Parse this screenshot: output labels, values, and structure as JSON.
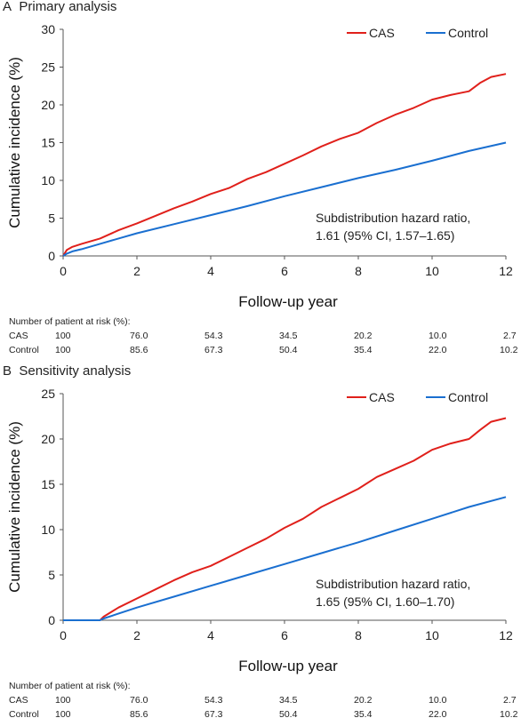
{
  "chart_data": [
    {
      "type": "line",
      "panel_label": "A",
      "title": "Primary analysis",
      "xlabel": "Follow-up year",
      "ylabel": "Cumulative incidence (%)",
      "xlim": [
        0,
        12
      ],
      "ylim": [
        0,
        30
      ],
      "xticks": [
        0,
        2,
        4,
        6,
        8,
        10,
        12
      ],
      "yticks": [
        0,
        5,
        10,
        15,
        20,
        25,
        30
      ],
      "grid": false,
      "legend_position": "top-right",
      "annotation": [
        "Subdistribution hazard ratio,",
        "1.61 (95% CI, 1.57–1.65)"
      ],
      "series": [
        {
          "name": "CAS",
          "color": "#e0201b",
          "x": [
            0,
            0.1,
            0.25,
            0.5,
            1,
            1.5,
            2,
            2.5,
            3,
            3.5,
            4,
            4.5,
            5,
            5.5,
            6,
            6.5,
            7,
            7.5,
            8,
            8.5,
            9,
            9.5,
            10,
            10.5,
            11,
            11.3,
            11.6,
            12
          ],
          "y": [
            0,
            0.8,
            1.2,
            1.6,
            2.3,
            3.4,
            4.3,
            5.3,
            6.3,
            7.2,
            8.2,
            9.0,
            10.2,
            11.1,
            12.2,
            13.3,
            14.5,
            15.5,
            16.3,
            17.6,
            18.7,
            19.6,
            20.7,
            21.3,
            21.8,
            22.9,
            23.7,
            24.1
          ]
        },
        {
          "name": "Control",
          "color": "#1a6fd0",
          "x": [
            0,
            0.1,
            0.25,
            0.5,
            1,
            2,
            3,
            4,
            5,
            6,
            7,
            8,
            9,
            10,
            11,
            12
          ],
          "y": [
            0,
            0.3,
            0.6,
            0.9,
            1.6,
            3.0,
            4.2,
            5.4,
            6.6,
            7.9,
            9.1,
            10.3,
            11.4,
            12.6,
            13.9,
            15.0
          ]
        }
      ],
      "risk_table": {
        "header": "Number of patient at risk (%):",
        "rows": [
          {
            "label": "CAS",
            "values": [
              "100",
              "76.0",
              "54.3",
              "34.5",
              "20.2",
              "10.0",
              "2.7"
            ]
          },
          {
            "label": "Control",
            "values": [
              "100",
              "85.6",
              "67.3",
              "50.4",
              "35.4",
              "22.0",
              "10.2"
            ]
          }
        ]
      }
    },
    {
      "type": "line",
      "panel_label": "B",
      "title": "Sensitivity analysis",
      "xlabel": "Follow-up year",
      "ylabel": "Cumulative incidence (%)",
      "xlim": [
        0,
        12
      ],
      "ylim": [
        0,
        25
      ],
      "xticks": [
        0,
        2,
        4,
        6,
        8,
        10,
        12
      ],
      "yticks": [
        0,
        5,
        10,
        15,
        20,
        25
      ],
      "grid": false,
      "legend_position": "top-right",
      "annotation": [
        "Subdistribution hazard ratio,",
        "1.65 (95% CI, 1.60–1.70)"
      ],
      "series": [
        {
          "name": "CAS",
          "color": "#e0201b",
          "x": [
            0,
            1.0,
            1.1,
            1.5,
            2,
            2.5,
            3,
            3.5,
            4,
            4.5,
            5,
            5.5,
            6,
            6.5,
            7,
            7.5,
            8,
            8.5,
            9,
            9.5,
            10,
            10.5,
            11,
            11.3,
            11.6,
            12
          ],
          "y": [
            0,
            0,
            0.4,
            1.4,
            2.4,
            3.4,
            4.4,
            5.3,
            6.0,
            7.0,
            8.0,
            9.0,
            10.2,
            11.2,
            12.5,
            13.5,
            14.5,
            15.8,
            16.7,
            17.6,
            18.8,
            19.5,
            20.0,
            21.0,
            21.9,
            22.3
          ]
        },
        {
          "name": "Control",
          "color": "#1a6fd0",
          "x": [
            0,
            1.0,
            1.1,
            2,
            3,
            4,
            5,
            6,
            7,
            8,
            9,
            10,
            11,
            12
          ],
          "y": [
            0,
            0,
            0.2,
            1.4,
            2.6,
            3.8,
            5.0,
            6.2,
            7.4,
            8.6,
            9.9,
            11.2,
            12.5,
            13.6
          ]
        }
      ],
      "risk_table": {
        "header": "Number of patient at risk (%):",
        "rows": [
          {
            "label": "CAS",
            "values": [
              "100",
              "76.0",
              "54.3",
              "34.5",
              "20.2",
              "10.0",
              "2.7"
            ]
          },
          {
            "label": "Control",
            "values": [
              "100",
              "85.6",
              "67.3",
              "50.4",
              "35.4",
              "22.0",
              "10.2"
            ]
          }
        ]
      }
    }
  ]
}
